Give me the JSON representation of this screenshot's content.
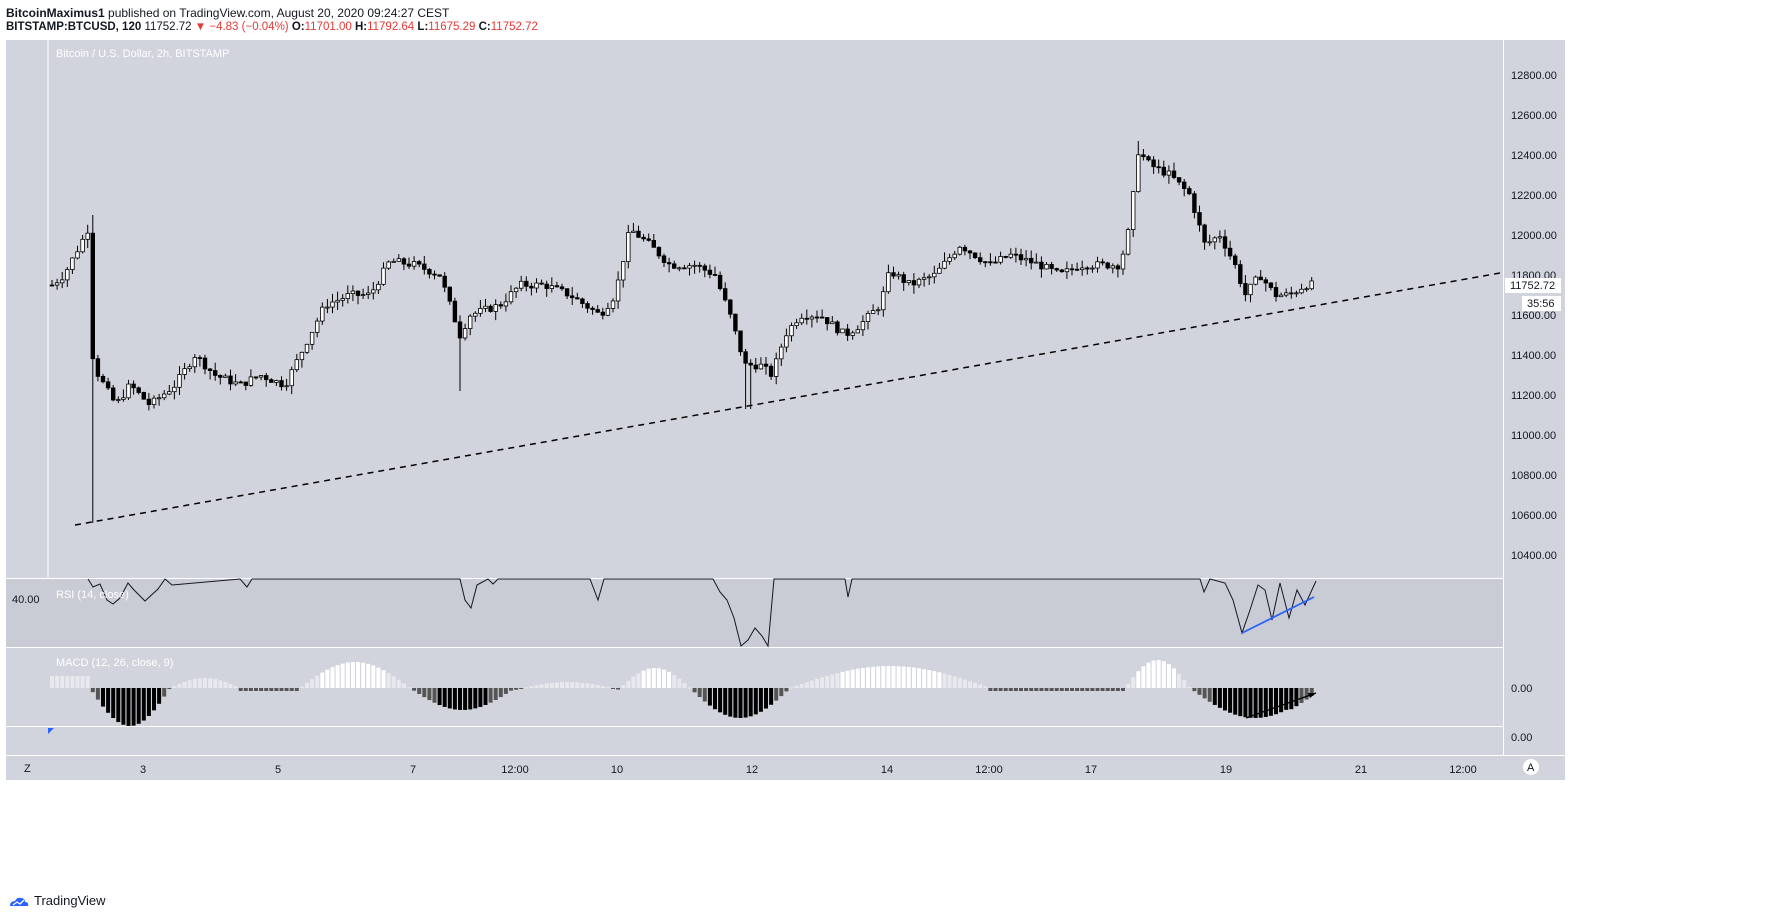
{
  "header": {
    "author": "BitcoinMaximus1",
    "published_text": " published on TradingView.com, August 20, 2020 09:24:27 CEST",
    "symbol": "BITSTAMP:BTCUSD, 120",
    "last": "11752.72",
    "change": "▼ −4.83 (−0.04%)",
    "o_label": "O:",
    "o_val": "11701.00",
    "h_label": "H:",
    "h_val": "11792.64",
    "l_label": "L:",
    "l_val": "11675.29",
    "c_label": "C:",
    "c_val": "11752.72"
  },
  "chart": {
    "title": "Bitcoin / U.S. Dollar, 2h, BITSTAMP",
    "price_badge": "11752.72",
    "countdown_badge": "35:56",
    "rsi_label": "RSI (14, close)",
    "rsi_tick": "40.00",
    "macd_label": "MACD (12, 26, close, 9)",
    "macd_ticks": [
      "0.00",
      "0.00"
    ],
    "price_ticks": [
      "12800.00",
      "12600.00",
      "12400.00",
      "12200.00",
      "12000.00",
      "11800.00",
      "11600.00",
      "11400.00",
      "11200.00",
      "11000.00",
      "10800.00",
      "10600.00",
      "10400.00"
    ],
    "x_ticks": [
      "3",
      "5",
      "7",
      "12:00",
      "10",
      "12",
      "14",
      "12:00",
      "17",
      "19",
      "21",
      "12:00"
    ],
    "corner_left": "Z",
    "corner_right": "A",
    "colors": {
      "bg": "#d1d4dc",
      "up": "#ffffff",
      "down": "#000000",
      "trend": "#000000",
      "rsi_div": "#2962ff"
    }
  },
  "chart_data": {
    "type": "candlestick",
    "title": "Bitcoin / U.S. Dollar, 2h, BITSTAMP",
    "x_range_label": [
      "Aug 2",
      "Aug 20"
    ],
    "ylim": [
      10300,
      12980
    ],
    "key_points": [
      {
        "label": "start",
        "close": 11750
      },
      {
        "label": "Aug 2 spike high",
        "high": 12100
      },
      {
        "label": "Aug 2 wick low",
        "low": 10560
      },
      {
        "label": "Aug 3-4 range",
        "low": 11050,
        "high": 11450
      },
      {
        "label": "Aug 10 high",
        "high": 12080
      },
      {
        "label": "Aug 12 low",
        "low": 11130
      },
      {
        "label": "Aug 17 high",
        "high": 12470
      },
      {
        "label": "Aug 19 low",
        "low": 11590
      },
      {
        "label": "last close",
        "close": 11752.72
      }
    ],
    "trendline": {
      "style": "dashed",
      "from": {
        "label": "Aug 2",
        "price": 10550
      },
      "to": {
        "label": "Aug 21",
        "price": 11810
      }
    },
    "series": [
      {
        "name": "RSI (14, close)",
        "reference": 40.0
      },
      {
        "name": "MACD (12, 26, close, 9)",
        "reference": 0.0
      }
    ],
    "grid": false
  }
}
